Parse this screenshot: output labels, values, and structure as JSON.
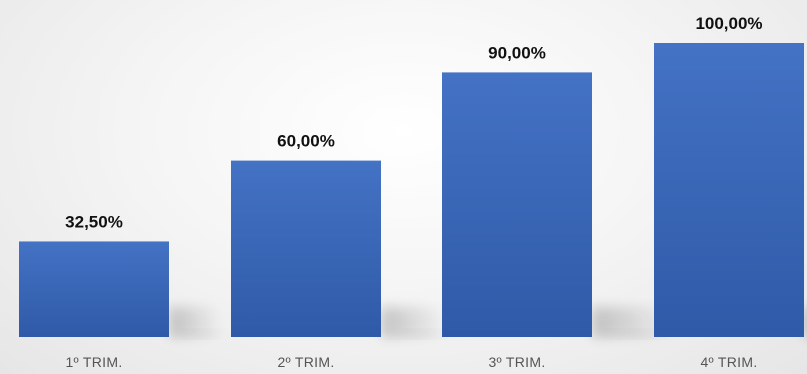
{
  "chart_data": {
    "type": "bar",
    "categories": [
      "1º TRIM.",
      "2º TRIM.",
      "3º TRIM.",
      "4º TRIM."
    ],
    "values": [
      32.5,
      60,
      90,
      100
    ],
    "data_labels": [
      "32,50%",
      "60,00%",
      "90,00%",
      "100,00%"
    ],
    "title": "",
    "xlabel": "",
    "ylabel": "",
    "ylim": [
      0,
      100
    ],
    "grid": false,
    "legend": "none",
    "colors": {
      "bar_top": "#4472C4",
      "bar_bottom": "#2F5AA8",
      "data_label": "#111111",
      "category_label": "#555555"
    }
  }
}
